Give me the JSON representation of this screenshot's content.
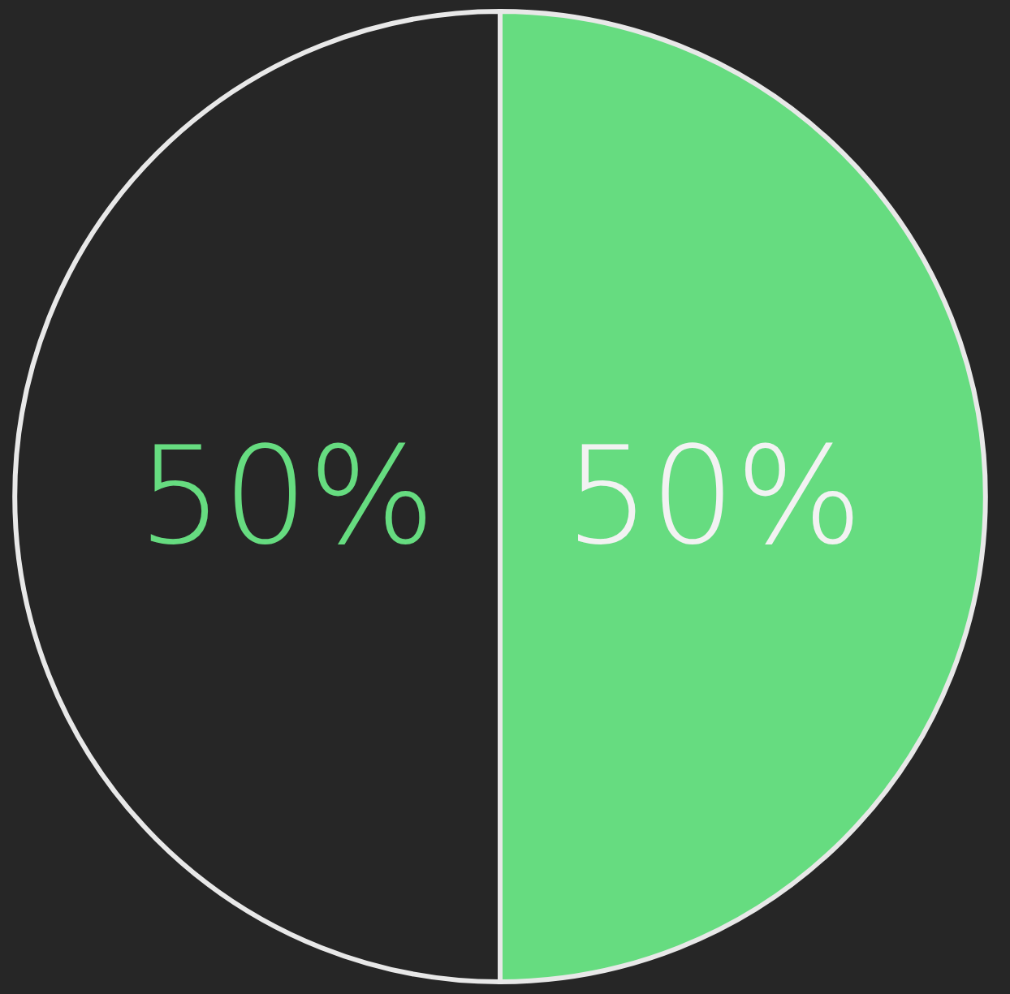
{
  "chart_data": {
    "type": "pie",
    "values": [
      50,
      50
    ],
    "value_labels": [
      "50%",
      "50%"
    ],
    "colors": [
      "#262626",
      "#66dc80"
    ],
    "data_labels": true
  }
}
